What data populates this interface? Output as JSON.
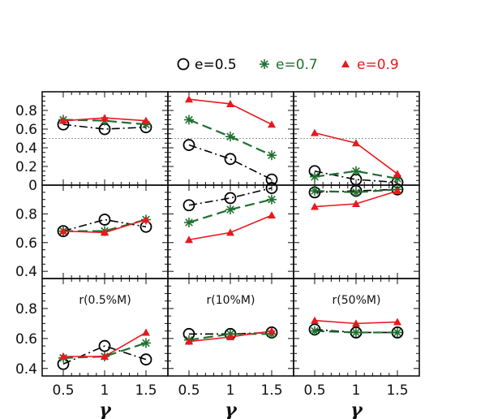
{
  "chart_data": {
    "type": "line",
    "x": [
      0.5,
      1,
      1.5
    ],
    "xticks": [
      "0.5",
      "1",
      "1.5"
    ],
    "xlabel": "γ",
    "series_names": [
      "e=0.5",
      "e=0.7",
      "e=0.9"
    ],
    "colors": {
      "e=0.5": "#000000",
      "e=0.7": "#1f6f2f",
      "e=0.9": "#e8191e"
    },
    "markers": {
      "e=0.5": "open-circle",
      "e=0.7": "asterisk",
      "e=0.9": "filled-triangle"
    },
    "legend": {
      "placement": "top",
      "labels": [
        "e=0.5",
        "e=0.7",
        "e=0.9"
      ]
    },
    "rows": [
      {
        "ylim": [
          0,
          1.0
        ],
        "yticks": [
          "0",
          "0.2",
          "0.4",
          "0.6",
          "0.8"
        ],
        "reference_line": 0.5
      },
      {
        "ylim": [
          0.35,
          1.0
        ],
        "yticks": [
          "0.4",
          "0.6",
          "0.8"
        ]
      },
      {
        "ylim": [
          0.35,
          1.0
        ],
        "yticks": [
          "0.4",
          "0.6",
          "0.8"
        ]
      }
    ],
    "panels": [
      {
        "row": 0,
        "col": 0,
        "annotation": "",
        "series": [
          {
            "name": "e=0.5",
            "values": [
              0.65,
              0.6,
              0.62
            ]
          },
          {
            "name": "e=0.7",
            "values": [
              0.7,
              0.69,
              0.65
            ]
          },
          {
            "name": "e=0.9",
            "values": [
              0.69,
              0.72,
              0.69
            ]
          }
        ]
      },
      {
        "row": 0,
        "col": 1,
        "annotation": "",
        "series": [
          {
            "name": "e=0.5",
            "values": [
              0.43,
              0.28,
              0.06
            ]
          },
          {
            "name": "e=0.7",
            "values": [
              0.7,
              0.52,
              0.32
            ]
          },
          {
            "name": "e=0.9",
            "values": [
              0.92,
              0.87,
              0.65
            ]
          }
        ]
      },
      {
        "row": 0,
        "col": 2,
        "annotation": "",
        "series": [
          {
            "name": "e=0.5",
            "values": [
              0.15,
              0.06,
              0.03
            ]
          },
          {
            "name": "e=0.7",
            "values": [
              0.09,
              0.15,
              0.07
            ]
          },
          {
            "name": "e=0.9",
            "values": [
              0.56,
              0.45,
              0.12
            ]
          }
        ]
      },
      {
        "row": 1,
        "col": 0,
        "annotation": "",
        "series": [
          {
            "name": "e=0.5",
            "values": [
              0.68,
              0.76,
              0.71
            ]
          },
          {
            "name": "e=0.7",
            "values": [
              0.68,
              0.68,
              0.76
            ]
          },
          {
            "name": "e=0.9",
            "values": [
              0.68,
              0.67,
              0.76
            ]
          }
        ]
      },
      {
        "row": 1,
        "col": 1,
        "annotation": "",
        "series": [
          {
            "name": "e=0.5",
            "values": [
              0.86,
              0.91,
              0.98
            ]
          },
          {
            "name": "e=0.7",
            "values": [
              0.74,
              0.83,
              0.9
            ]
          },
          {
            "name": "e=0.9",
            "values": [
              0.62,
              0.67,
              0.79
            ]
          }
        ]
      },
      {
        "row": 1,
        "col": 2,
        "annotation": "",
        "series": [
          {
            "name": "e=0.5",
            "values": [
              0.95,
              0.96,
              0.97
            ]
          },
          {
            "name": "e=0.7",
            "values": [
              0.96,
              0.95,
              0.97
            ]
          },
          {
            "name": "e=0.9",
            "values": [
              0.85,
              0.87,
              0.96
            ]
          }
        ]
      },
      {
        "row": 2,
        "col": 0,
        "annotation": "r(0.5%M)",
        "series": [
          {
            "name": "e=0.5",
            "values": [
              0.43,
              0.55,
              0.46
            ]
          },
          {
            "name": "e=0.7",
            "values": [
              0.47,
              0.48,
              0.57
            ]
          },
          {
            "name": "e=0.9",
            "values": [
              0.48,
              0.48,
              0.64
            ]
          }
        ]
      },
      {
        "row": 2,
        "col": 1,
        "annotation": "r(10%M)",
        "series": [
          {
            "name": "e=0.5",
            "values": [
              0.63,
              0.63,
              0.64
            ]
          },
          {
            "name": "e=0.7",
            "values": [
              0.59,
              0.63,
              0.63
            ]
          },
          {
            "name": "e=0.9",
            "values": [
              0.58,
              0.61,
              0.65
            ]
          }
        ]
      },
      {
        "row": 2,
        "col": 2,
        "annotation": "r(50%M)",
        "series": [
          {
            "name": "e=0.5",
            "values": [
              0.66,
              0.64,
              0.64
            ]
          },
          {
            "name": "e=0.7",
            "values": [
              0.65,
              0.64,
              0.64
            ]
          },
          {
            "name": "e=0.9",
            "values": [
              0.72,
              0.7,
              0.71
            ]
          }
        ]
      }
    ]
  }
}
